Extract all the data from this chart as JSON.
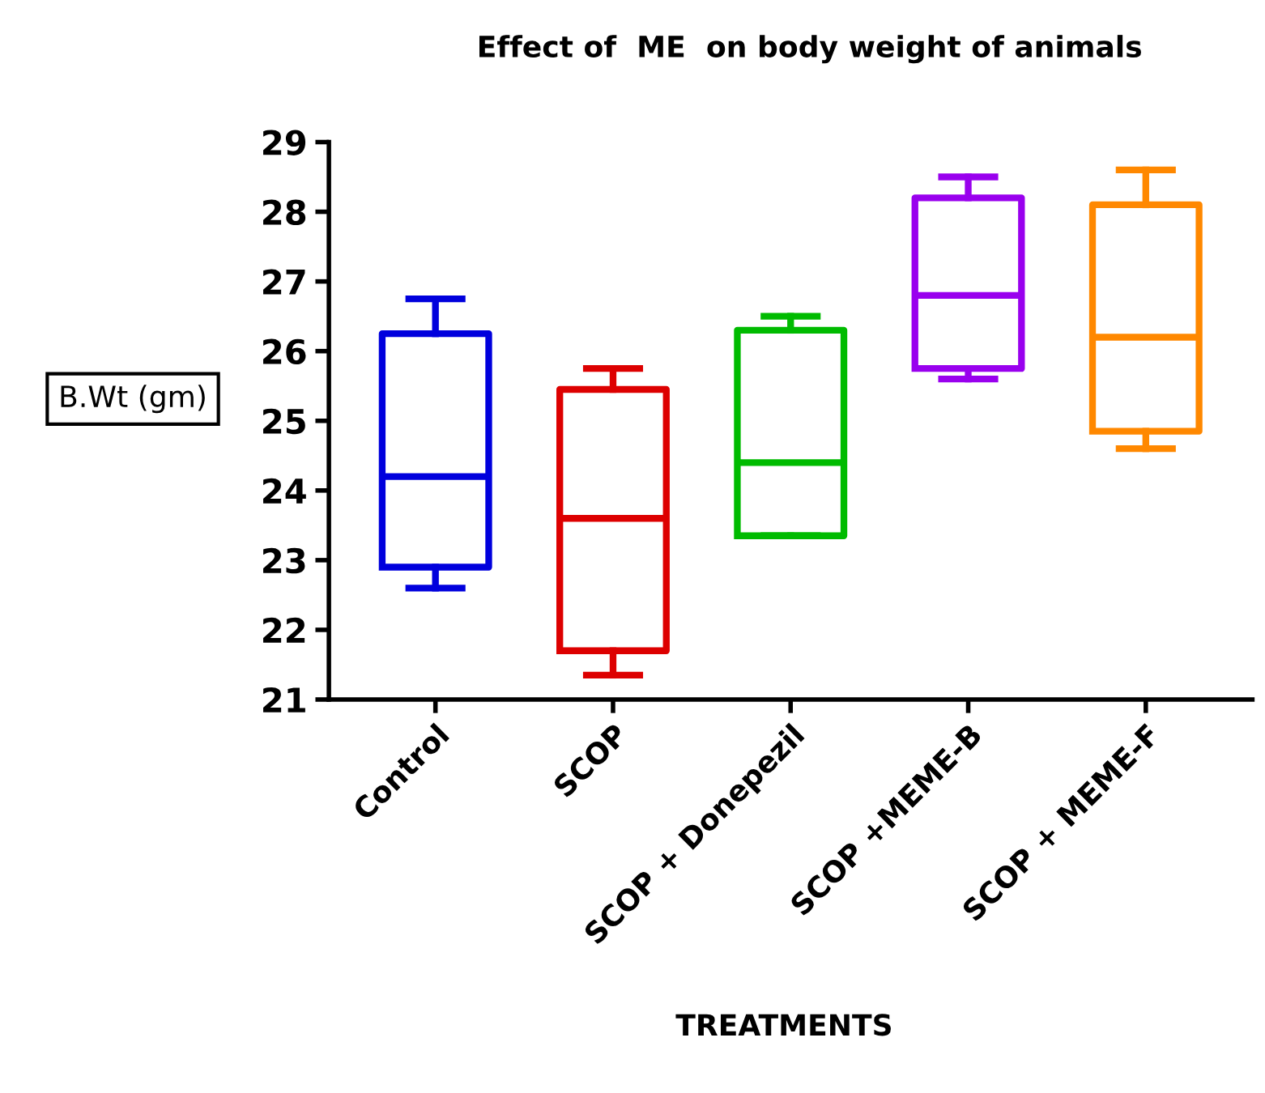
{
  "chart_data": {
    "type": "box",
    "title": "Effect of  ME  on body weight of animals",
    "xlabel": "TREATMENTS",
    "ylabel": "B.Wt (gm)",
    "categories": [
      "Control",
      "SCOP",
      "SCOP + Donepezil",
      "SCOP +MEME-B",
      "SCOP + MEME-F"
    ],
    "colors": [
      "#0000dd",
      "#dd0000",
      "#00bb00",
      "#9900ee",
      "#ff8800"
    ],
    "boxes": [
      {
        "low": 22.6,
        "q1": 22.9,
        "median": 24.2,
        "q3": 26.25,
        "high": 26.75
      },
      {
        "low": 21.35,
        "q1": 21.7,
        "median": 23.6,
        "q3": 25.45,
        "high": 25.75
      },
      {
        "low": 23.35,
        "q1": 23.35,
        "median": 24.4,
        "q3": 26.3,
        "high": 26.5
      },
      {
        "low": 25.6,
        "q1": 25.75,
        "median": 26.8,
        "q3": 28.2,
        "high": 28.5
      },
      {
        "low": 24.6,
        "q1": 24.85,
        "median": 26.2,
        "q3": 28.1,
        "high": 28.6
      }
    ],
    "ylim": [
      21,
      29
    ],
    "yticks": [
      21,
      22,
      23,
      24,
      25,
      26,
      27,
      28,
      29
    ],
    "grid": false,
    "legend": false
  }
}
